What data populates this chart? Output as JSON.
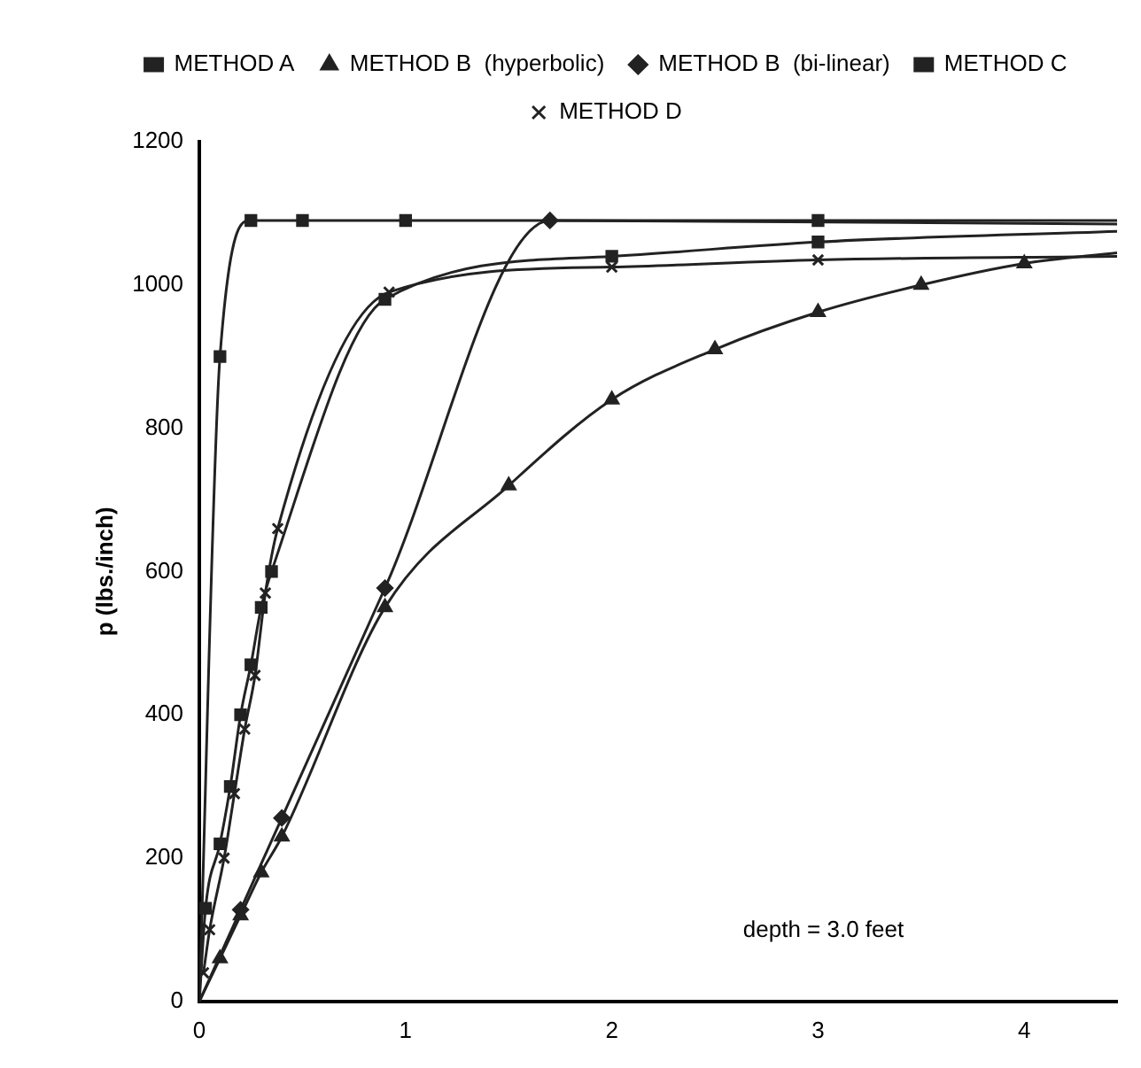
{
  "chart_data": {
    "type": "line",
    "ylabel": "p (lbs./inch)",
    "annotations": [
      "depth = 3.0 feet"
    ],
    "xlim": [
      0,
      4.45
    ],
    "xticks": [
      0,
      1,
      2,
      3,
      4
    ],
    "ylim": [
      0,
      1200
    ],
    "yticks": [
      0,
      200,
      400,
      600,
      800,
      1000,
      1200
    ],
    "legend": "top",
    "grid": false,
    "series": [
      {
        "name": "METHOD A",
        "color": "#222222",
        "marker": "square",
        "x": [
          0,
          0.03,
          0.1,
          0.15,
          0.2,
          0.25,
          0.3,
          0.35,
          0.9,
          2,
          3,
          4.45
        ],
        "values": [
          0,
          130,
          220,
          300,
          400,
          470,
          550,
          600,
          980,
          1040,
          1060,
          1075
        ]
      },
      {
        "name": "METHOD B  (hyperbolic)",
        "color": "#222222",
        "marker": "triangle",
        "x": [
          0,
          0.1,
          0.2,
          0.3,
          0.4,
          0.9,
          1.5,
          2,
          2.5,
          3,
          3.5,
          4,
          4.45
        ],
        "values": [
          0,
          60,
          120,
          180,
          230,
          550,
          720,
          840,
          910,
          962,
          1000,
          1030,
          1045
        ]
      },
      {
        "name": "METHOD B  (bi-linear)",
        "color": "#222222",
        "marker": "diamond",
        "x": [
          0,
          0.2,
          0.4,
          0.9,
          1.7,
          4.45
        ],
        "values": [
          0,
          128,
          256,
          577,
          1090,
          1085
        ]
      },
      {
        "name": "METHOD C",
        "color": "#222222",
        "marker": "square",
        "x": [
          0,
          0.1,
          0.25,
          0.5,
          1,
          3,
          4.45
        ],
        "values": [
          0,
          900,
          1090,
          1090,
          1090,
          1090,
          1090
        ]
      },
      {
        "name": "METHOD D",
        "color": "#222222",
        "marker": "cross",
        "x": [
          0.02,
          0.05,
          0.12,
          0.17,
          0.22,
          0.27,
          0.32,
          0.38,
          0.92,
          2,
          3,
          4.45
        ],
        "values": [
          40,
          100,
          200,
          290,
          380,
          455,
          570,
          660,
          990,
          1025,
          1035,
          1040
        ]
      }
    ]
  }
}
